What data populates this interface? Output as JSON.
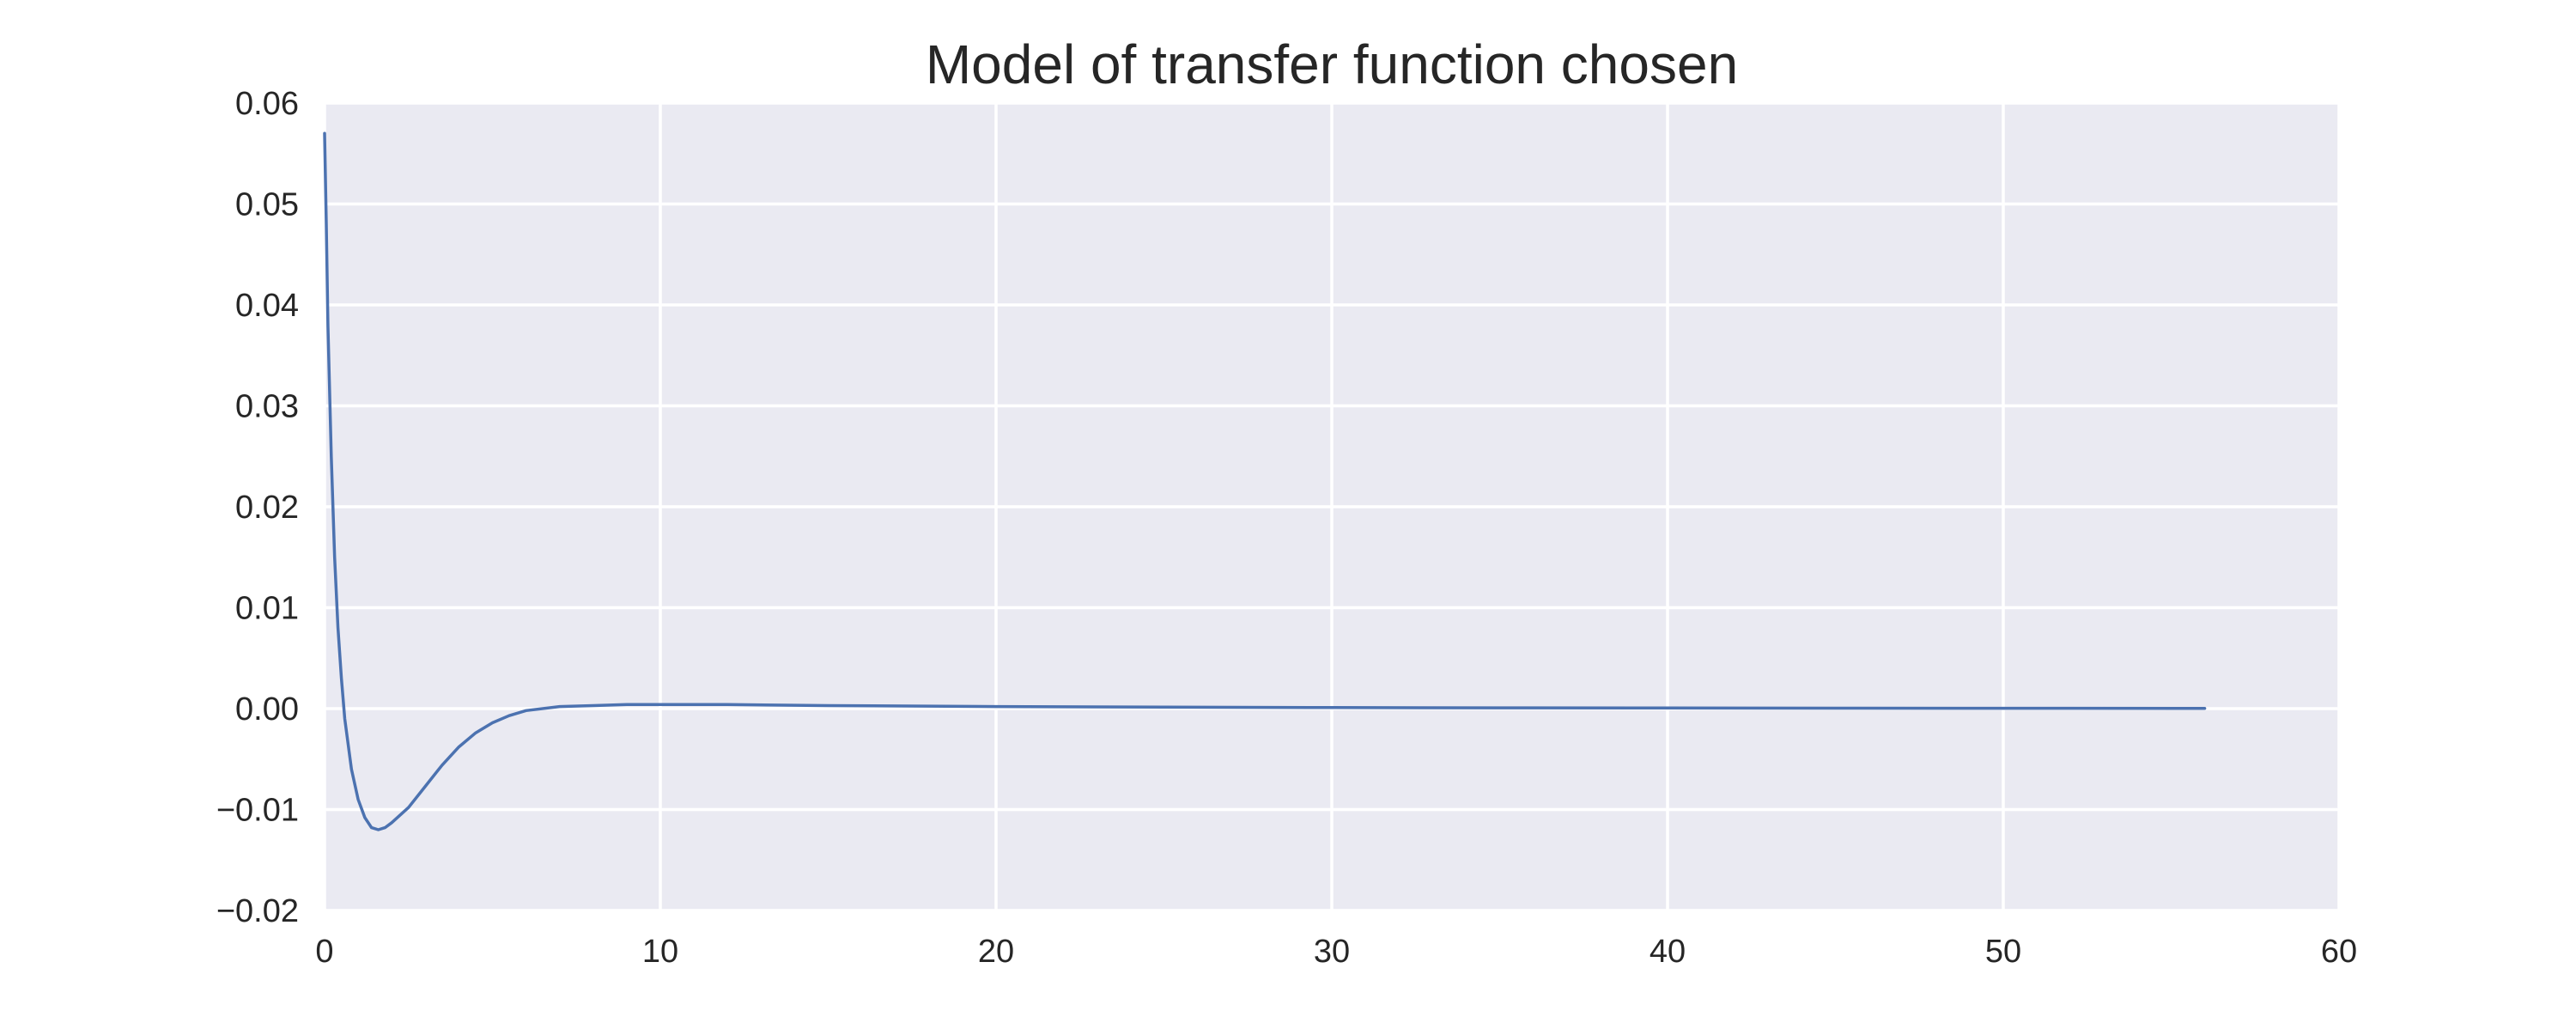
{
  "chart_data": {
    "type": "line",
    "title": "Model of transfer function chosen",
    "xlabel": "",
    "ylabel": "",
    "xlim": [
      0,
      60
    ],
    "ylim": [
      -0.02,
      0.06
    ],
    "x_ticks": [
      0,
      10,
      20,
      30,
      40,
      50,
      60
    ],
    "y_ticks": [
      -0.02,
      -0.01,
      0.0,
      0.01,
      0.02,
      0.03,
      0.04,
      0.05,
      0.06
    ],
    "x_tick_labels": [
      "0",
      "10",
      "20",
      "30",
      "40",
      "50",
      "60"
    ],
    "y_tick_labels": [
      "−0.02",
      "−0.01",
      "0.00",
      "0.01",
      "0.02",
      "0.03",
      "0.04",
      "0.05",
      "0.06"
    ],
    "grid": true,
    "legend": "none",
    "colors": {
      "background": "#EAEAF2",
      "grid": "#FFFFFF",
      "line": "#4C72B0"
    },
    "series": [
      {
        "x": [
          0,
          0.05,
          0.1,
          0.2,
          0.3,
          0.4,
          0.5,
          0.6,
          0.8,
          1.0,
          1.2,
          1.4,
          1.6,
          1.8,
          2.0,
          2.5,
          3.0,
          3.5,
          4.0,
          4.5,
          5.0,
          5.5,
          6.0,
          7.0,
          8.0,
          9.0,
          10.0,
          12.0,
          15.0,
          20.0,
          25.0,
          30.0,
          35.0,
          40.0,
          45.0,
          50.0,
          56.0
        ],
        "y": [
          0.057,
          0.048,
          0.038,
          0.025,
          0.015,
          0.008,
          0.003,
          -0.001,
          -0.006,
          -0.009,
          -0.0108,
          -0.0118,
          -0.012,
          -0.0118,
          -0.0113,
          -0.0098,
          -0.0077,
          -0.0056,
          -0.0038,
          -0.0024,
          -0.0014,
          -0.0007,
          -0.0002,
          0.0002,
          0.0003,
          0.0004,
          0.0004,
          0.0004,
          0.0003,
          0.0002,
          0.00015,
          0.0001,
          8e-05,
          6e-05,
          4e-05,
          3e-05,
          2e-05
        ]
      }
    ]
  }
}
